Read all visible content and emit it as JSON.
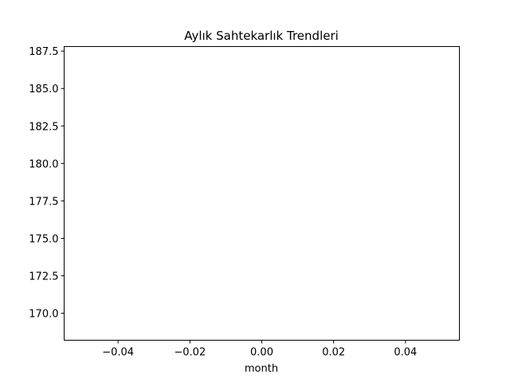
{
  "chart_data": {
    "type": "line",
    "title": "Aylık Sahtekarlık Trendleri",
    "xlabel": "month",
    "ylabel": "",
    "xlim": [
      -0.055,
      0.055
    ],
    "ylim": [
      168.2,
      187.8
    ],
    "xticks": [
      -0.04,
      -0.02,
      0.0,
      0.02,
      0.04
    ],
    "xtick_labels": [
      "−0.04",
      "−0.02",
      "0.00",
      "0.02",
      "0.04"
    ],
    "yticks": [
      170.0,
      172.5,
      175.0,
      177.5,
      180.0,
      182.5,
      185.0,
      187.5
    ],
    "ytick_labels": [
      "170.0",
      "172.5",
      "175.0",
      "177.5",
      "180.0",
      "182.5",
      "185.0",
      "187.5"
    ],
    "series": [],
    "grid": false,
    "legend": "none"
  }
}
